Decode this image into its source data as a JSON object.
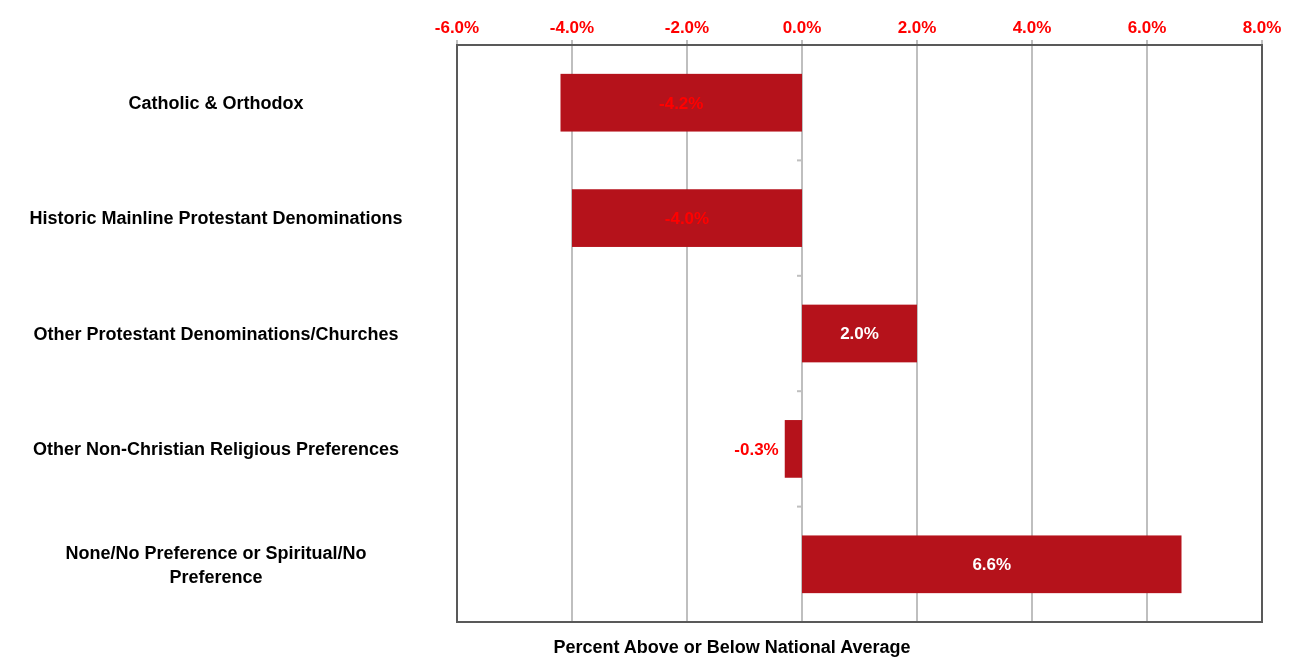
{
  "chart_data": {
    "type": "bar",
    "orientation": "horizontal",
    "xlabel": "Percent Above or Below National Average",
    "categories": [
      "Catholic & Orthodox",
      "Historic Mainline Protestant Denominations",
      "Other Protestant Denominations/Churches",
      "Other Non-Christian Religious Preferences",
      "None/No Preference or Spiritual/No Preference"
    ],
    "values": [
      -4.2,
      -4.0,
      2.0,
      -0.3,
      6.6
    ],
    "value_labels": [
      "-4.2%",
      "-4.0%",
      "2.0%",
      "-0.3%",
      "6.6%"
    ],
    "color": "#b5121b",
    "xlim": [
      -6,
      8
    ],
    "xticks": [
      {
        "value": -6,
        "label": "-6.0%"
      },
      {
        "value": -4,
        "label": "-4.0%"
      },
      {
        "value": -2,
        "label": "-2.0%"
      },
      {
        "value": 0,
        "label": "0.0%"
      },
      {
        "value": 2,
        "label": "2.0%"
      },
      {
        "value": 4,
        "label": "4.0%"
      },
      {
        "value": 6,
        "label": "6.0%"
      },
      {
        "value": 8,
        "label": "8.0%"
      }
    ],
    "grid": "x"
  }
}
